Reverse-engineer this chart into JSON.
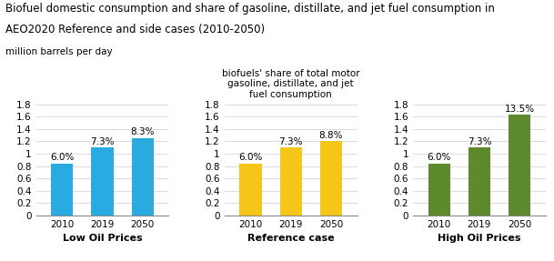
{
  "title_line1": "Biofuel domestic consumption and share of gasoline, distillate, and jet fuel consumption in",
  "title_line2": "AEO2020 Reference and side cases (2010-2050)",
  "ylabel": "million barrels per day",
  "ylim": [
    0,
    1.8
  ],
  "yticks": [
    0,
    0.2,
    0.4,
    0.6,
    0.8,
    1.0,
    1.2,
    1.4,
    1.6,
    1.8
  ],
  "ytick_labels": [
    "0",
    "0.2",
    "0.4",
    "0.6",
    "0.8",
    "1",
    "1.2",
    "1.4",
    "1.6",
    "1.8"
  ],
  "categories": [
    "2010",
    "2019",
    "2050"
  ],
  "charts": [
    {
      "title": "Low Oil Prices",
      "title_weight": "bold",
      "values": [
        0.84,
        1.1,
        1.25
      ],
      "labels": [
        "6.0%",
        "7.3%",
        "8.3%"
      ],
      "color": "#29ABE2",
      "subtitle": ""
    },
    {
      "title": "Reference case",
      "title_weight": "bold",
      "values": [
        0.84,
        1.1,
        1.2
      ],
      "labels": [
        "6.0%",
        "7.3%",
        "8.8%"
      ],
      "color": "#F5C518",
      "subtitle": "biofuels' share of total motor\ngasoline, distillate, and jet\nfuel consumption"
    },
    {
      "title": "High Oil Prices",
      "title_weight": "bold",
      "values": [
        0.84,
        1.1,
        1.63
      ],
      "labels": [
        "6.0%",
        "7.3%",
        "13.5%"
      ],
      "color": "#5C8A2D",
      "subtitle": ""
    }
  ],
  "bar_width": 0.55,
  "label_fontsize": 7.5,
  "title_fontsize": 8.5,
  "axis_title_fontsize": 8.0,
  "ylabel_fontsize": 7.5,
  "subtitle_fontsize": 7.5,
  "background_color": "#ffffff",
  "grid_color": "#cccccc"
}
